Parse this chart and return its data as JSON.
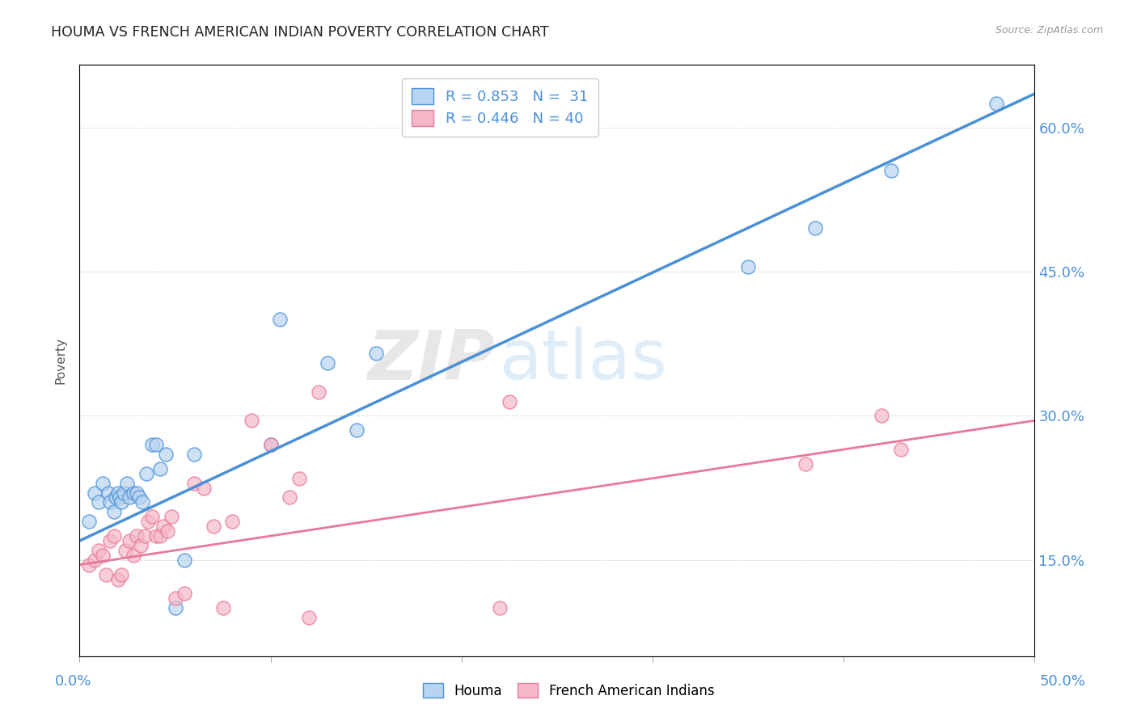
{
  "title": "HOUMA VS FRENCH AMERICAN INDIAN POVERTY CORRELATION CHART",
  "source": "Source: ZipAtlas.com",
  "ylabel": "Poverty",
  "ytick_labels": [
    "15.0%",
    "30.0%",
    "45.0%",
    "60.0%"
  ],
  "ytick_values": [
    0.15,
    0.3,
    0.45,
    0.6
  ],
  "xlim": [
    0.0,
    0.5
  ],
  "ylim": [
    0.05,
    0.665
  ],
  "houma_color": "#b8d4f0",
  "pink_color": "#f5b8c8",
  "line_blue": "#4a90d9",
  "line_pink": "#e8799a",
  "watermark_zip": "ZIP",
  "watermark_atlas": "atlas",
  "blue_line_x0": 0.0,
  "blue_line_y0": 0.17,
  "blue_line_x1": 0.5,
  "blue_line_y1": 0.635,
  "pink_line_x0": 0.0,
  "pink_line_y0": 0.145,
  "pink_line_x1": 0.5,
  "pink_line_y1": 0.295,
  "houma_x": [
    0.005,
    0.008,
    0.01,
    0.012,
    0.015,
    0.016,
    0.018,
    0.019,
    0.02,
    0.021,
    0.022,
    0.023,
    0.025,
    0.026,
    0.028,
    0.03,
    0.031,
    0.033,
    0.035,
    0.038,
    0.04,
    0.042,
    0.045,
    0.05,
    0.055,
    0.06,
    0.1,
    0.105,
    0.13,
    0.145,
    0.155,
    0.35,
    0.385,
    0.425,
    0.48
  ],
  "houma_y": [
    0.19,
    0.22,
    0.21,
    0.23,
    0.22,
    0.21,
    0.2,
    0.215,
    0.22,
    0.215,
    0.21,
    0.22,
    0.23,
    0.215,
    0.22,
    0.22,
    0.215,
    0.21,
    0.24,
    0.27,
    0.27,
    0.245,
    0.26,
    0.1,
    0.15,
    0.26,
    0.27,
    0.4,
    0.355,
    0.285,
    0.365,
    0.455,
    0.495,
    0.555,
    0.625
  ],
  "pink_x": [
    0.005,
    0.008,
    0.01,
    0.012,
    0.014,
    0.016,
    0.018,
    0.02,
    0.022,
    0.024,
    0.026,
    0.028,
    0.03,
    0.032,
    0.034,
    0.036,
    0.038,
    0.04,
    0.042,
    0.044,
    0.046,
    0.048,
    0.05,
    0.055,
    0.06,
    0.065,
    0.07,
    0.075,
    0.08,
    0.09,
    0.1,
    0.11,
    0.115,
    0.12,
    0.125,
    0.22,
    0.225,
    0.38,
    0.42,
    0.43
  ],
  "pink_y": [
    0.145,
    0.15,
    0.16,
    0.155,
    0.135,
    0.17,
    0.175,
    0.13,
    0.135,
    0.16,
    0.17,
    0.155,
    0.175,
    0.165,
    0.175,
    0.19,
    0.195,
    0.175,
    0.175,
    0.185,
    0.18,
    0.195,
    0.11,
    0.115,
    0.23,
    0.225,
    0.185,
    0.1,
    0.19,
    0.295,
    0.27,
    0.215,
    0.235,
    0.09,
    0.325,
    0.1,
    0.315,
    0.25,
    0.3,
    0.265
  ]
}
